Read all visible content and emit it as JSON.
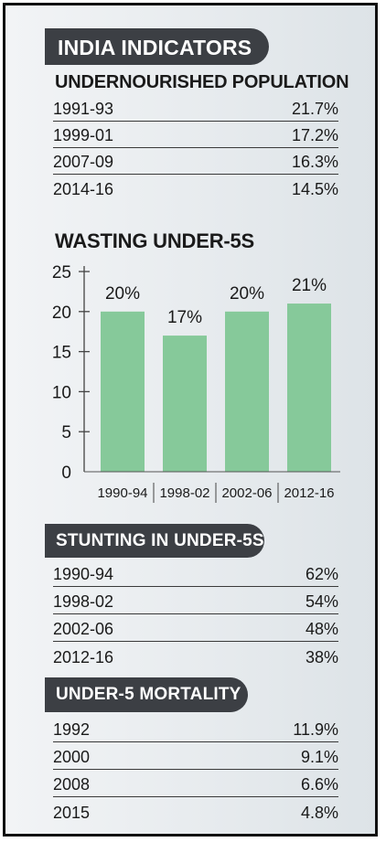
{
  "title": "INDIA INDICATORS",
  "colors": {
    "bar": "#86c99a",
    "pill": "#3c3f44"
  },
  "undernourished": {
    "heading": "UNDERNOURISHED POPULATION",
    "rows": [
      {
        "label": "1991-93",
        "value": "21.7%"
      },
      {
        "label": "1999-01",
        "value": "17.2%"
      },
      {
        "label": "2007-09",
        "value": "16.3%"
      },
      {
        "label": "2014-16",
        "value": "14.5%"
      }
    ]
  },
  "chart_data": {
    "type": "bar",
    "title": "WASTING UNDER-5S",
    "categories": [
      "1990-94",
      "1998-02",
      "2002-06",
      "2012-16"
    ],
    "values": [
      20,
      17,
      20,
      21
    ],
    "data_labels": [
      "20%",
      "17%",
      "20%",
      "21%"
    ],
    "yticks": [
      0,
      5,
      10,
      15,
      20,
      25
    ],
    "ylim": [
      0,
      25
    ],
    "grid": false
  },
  "stunting": {
    "heading": "STUNTING IN UNDER-5S",
    "rows": [
      {
        "label": "1990-94",
        "value": "62%"
      },
      {
        "label": "1998-02",
        "value": "54%"
      },
      {
        "label": "2002-06",
        "value": "48%"
      },
      {
        "label": "2012-16",
        "value": "38%"
      }
    ]
  },
  "mortality": {
    "heading": "UNDER-5 MORTALITY",
    "rows": [
      {
        "label": "1992",
        "value": "11.9%"
      },
      {
        "label": "2000",
        "value": "9.1%"
      },
      {
        "label": "2008",
        "value": "6.6%"
      },
      {
        "label": "2015",
        "value": "4.8%"
      }
    ]
  }
}
